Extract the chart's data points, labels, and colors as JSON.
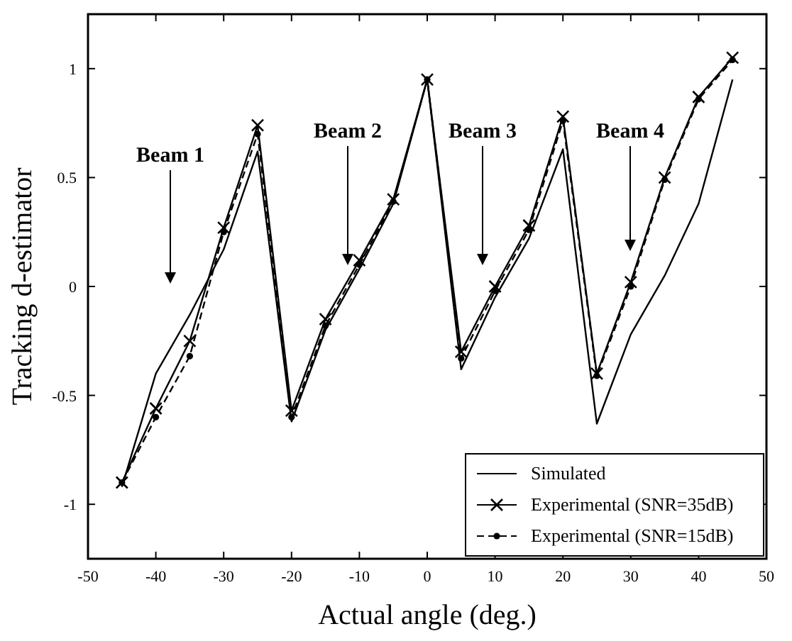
{
  "chart_data": {
    "type": "line",
    "xlabel": "Actual angle (deg.)",
    "ylabel": "Tracking d-estimator",
    "x": [
      -45,
      -40,
      -35,
      -30,
      -25,
      -20,
      -15,
      -10,
      -5,
      0,
      5,
      10,
      15,
      20,
      25,
      30,
      35,
      40,
      45
    ],
    "series": [
      {
        "name": "Simulated",
        "color": "#000000",
        "marker": "none",
        "line_style": "solid",
        "values": [
          -0.92,
          -0.4,
          -0.13,
          0.17,
          0.62,
          -0.62,
          -0.2,
          0.08,
          0.38,
          0.95,
          -0.38,
          -0.05,
          0.22,
          0.63,
          -0.63,
          -0.22,
          0.05,
          0.38,
          0.95
        ]
      },
      {
        "name": "Experimental (SNR=35dB)",
        "color": "#000000",
        "marker": "cross",
        "line_style": "solid",
        "values": [
          -0.9,
          -0.56,
          -0.25,
          0.27,
          0.74,
          -0.57,
          -0.15,
          0.12,
          0.4,
          0.95,
          -0.3,
          0.0,
          0.28,
          0.78,
          -0.4,
          0.02,
          0.5,
          0.87,
          1.05
        ]
      },
      {
        "name": "Experimental (SNR=15dB)",
        "color": "#000000",
        "marker": "circle",
        "line_style": "dashed",
        "values": [
          -0.9,
          -0.6,
          -0.32,
          0.25,
          0.7,
          -0.6,
          -0.18,
          0.1,
          0.39,
          0.95,
          -0.33,
          -0.02,
          0.26,
          0.76,
          -0.41,
          0.0,
          0.49,
          0.86,
          1.04
        ]
      }
    ],
    "xlim": [
      -50,
      50
    ],
    "xticks": [
      -50,
      -40,
      -30,
      -20,
      -10,
      0,
      10,
      20,
      30,
      40,
      50
    ],
    "ylim": [
      -1.25,
      1.25
    ],
    "yticks": [
      -1,
      -0.5,
      0,
      0.5,
      1
    ],
    "grid": false,
    "legend": "bottom right",
    "annotations": [
      "Beam 1",
      "Beam 2",
      "Beam 3",
      "Beam 4"
    ]
  }
}
